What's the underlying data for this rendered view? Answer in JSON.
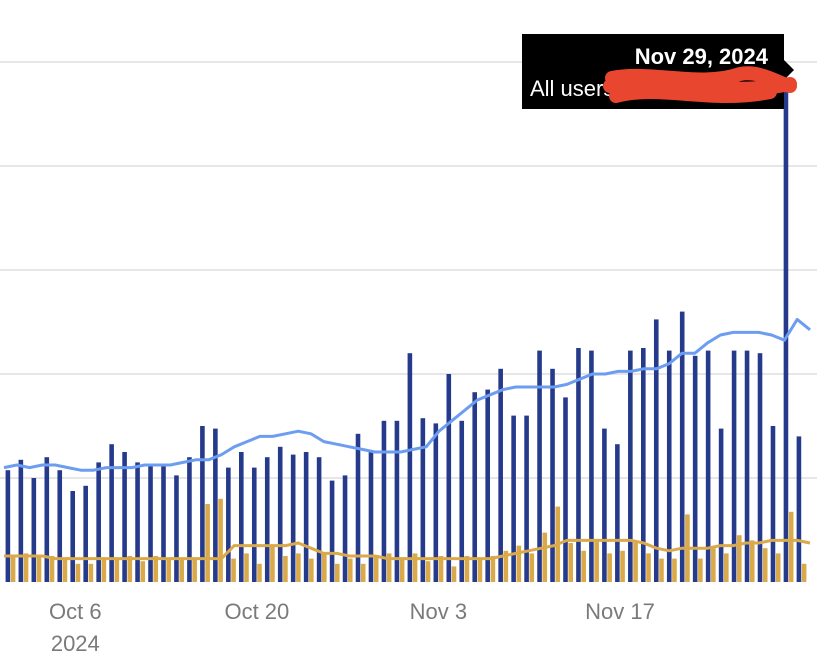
{
  "chart_data": {
    "type": "bar",
    "x_start": "2024-10-01",
    "x_end": "2024-11-30",
    "ylim": [
      0,
      100
    ],
    "grid": true,
    "x_ticks": [
      {
        "label": "Oct 6",
        "sublabel": "2024",
        "date": "2024-10-06"
      },
      {
        "label": "Oct 20",
        "sublabel": "",
        "date": "2024-10-20"
      },
      {
        "label": "Nov 3",
        "sublabel": "",
        "date": "2024-11-03"
      },
      {
        "label": "Nov 17",
        "sublabel": "",
        "date": "2024-11-17"
      }
    ],
    "series": [
      {
        "type": "bar",
        "color": "#263a8c",
        "values": [
          21.5,
          23.5,
          20,
          24,
          21.5,
          17.5,
          18.5,
          23,
          26.5,
          25,
          23,
          22.5,
          22.5,
          20.5,
          24,
          30,
          29.5,
          22,
          25,
          22,
          24,
          26,
          24.5,
          25,
          24,
          19.5,
          20.5,
          28.5,
          25,
          31,
          31,
          44,
          31.5,
          30.5,
          40,
          31,
          36.5,
          37,
          41,
          32,
          32,
          44.5,
          41,
          35.5,
          45,
          44.5,
          29.5,
          26.5,
          44.5,
          45,
          50.5,
          44.5,
          52,
          43.5,
          44.5,
          29.5,
          44.5,
          44.5,
          44,
          30,
          94.5,
          28
        ]
      },
      {
        "type": "bar",
        "color": "#d9a94a",
        "values": [
          5,
          5.5,
          5,
          5,
          4.5,
          3.5,
          3.5,
          4.5,
          4.5,
          5,
          4,
          5,
          4.5,
          4.5,
          4.5,
          15,
          16,
          4.5,
          5.5,
          3.5,
          7,
          5,
          5.5,
          4.5,
          5.5,
          3.5,
          4.5,
          3.5,
          5,
          5.5,
          4.5,
          5.5,
          4,
          5,
          3,
          5,
          4.5,
          5,
          6,
          7,
          5.5,
          9.5,
          14.5,
          7.5,
          6,
          8,
          5.5,
          6,
          8,
          5.5,
          4.5,
          4.5,
          13,
          4.5,
          6.5,
          5.5,
          9,
          8,
          6.5,
          5.5,
          13.5,
          3.5
        ]
      },
      {
        "type": "line",
        "color": "#6d9df0",
        "values": [
          22,
          22.5,
          22,
          22.5,
          22.5,
          22,
          21.5,
          21.5,
          22,
          22,
          22,
          22.5,
          22.5,
          22.5,
          23,
          23.5,
          23.5,
          24.5,
          26,
          27,
          28,
          28,
          28.5,
          29,
          28.5,
          27,
          26.5,
          26,
          25.5,
          25,
          25,
          25,
          25.5,
          26,
          29,
          31,
          33,
          35,
          36,
          37,
          37.5,
          37.5,
          37.5,
          37.5,
          38,
          39,
          40,
          40,
          40.5,
          40.5,
          41,
          41,
          42,
          44,
          44,
          46,
          47.5,
          48,
          48,
          48,
          47.5,
          46.5,
          50.5,
          48.5
        ]
      },
      {
        "type": "line",
        "color": "#d9a94a",
        "values": [
          5,
          5,
          5,
          5,
          4.5,
          4.5,
          4.5,
          4.5,
          4.5,
          4.5,
          4.5,
          4.5,
          4.5,
          4.5,
          4.5,
          4.5,
          4.5,
          4.5,
          7,
          7,
          7,
          7,
          7,
          7.5,
          6.5,
          5.5,
          5.5,
          5,
          5,
          5,
          4.5,
          4.5,
          4.5,
          4.5,
          4.5,
          4.5,
          4.5,
          4.5,
          4.5,
          5,
          5.5,
          6,
          6.5,
          7,
          8,
          8,
          8,
          8,
          8,
          8,
          7.5,
          6.5,
          6,
          6.5,
          6.5,
          6.5,
          7,
          7,
          7.5,
          7.5,
          8,
          8,
          8,
          7.5
        ]
      }
    ],
    "tooltip": {
      "title": "Nov 29, 2024",
      "label": "All users:",
      "value_redacted": true
    }
  }
}
